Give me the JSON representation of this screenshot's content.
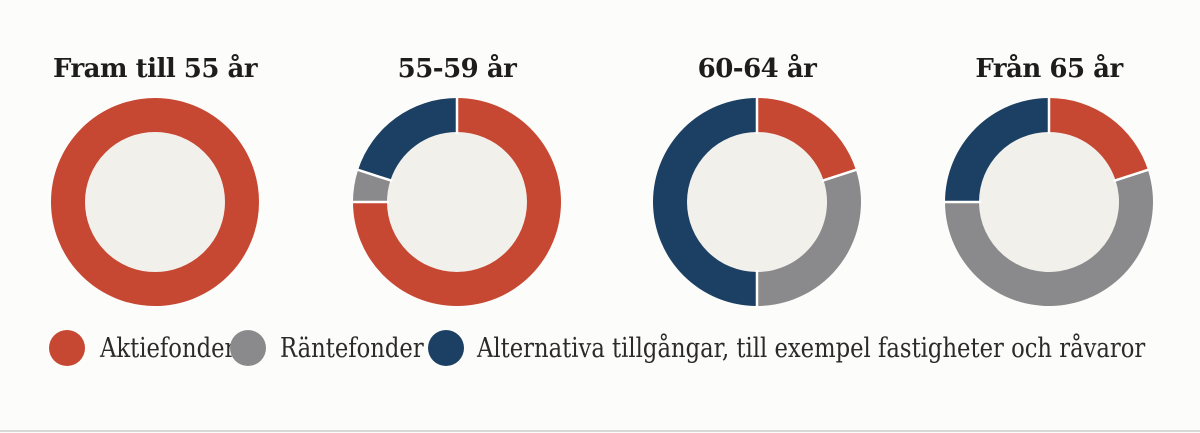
{
  "page": {
    "background": "#fcfcfa",
    "bottom_rule_color": "#d8d8d6",
    "title_text_color": "#1e1d1b",
    "legend_text_color": "#2b2a27"
  },
  "chart_data": {
    "type": "pie",
    "variant": "donut",
    "start_angle": "12-oclock",
    "direction": "clockwise",
    "unit": "percent",
    "categories": [
      "Aktiefonder",
      "Räntefonder",
      "Alternativa tillgångar"
    ],
    "colors": [
      "#c64732",
      "#8a8a8c",
      "#1c4063"
    ],
    "hole_color": "#f1f0eb",
    "separator_color": "#ffffff",
    "charts": [
      {
        "title": "Fram till 55 år",
        "values": [
          100,
          0,
          0
        ]
      },
      {
        "title": "55-59 år",
        "values": [
          75,
          5,
          20
        ]
      },
      {
        "title": "60-64 år",
        "values": [
          20,
          30,
          50
        ]
      },
      {
        "title": "Från 65 år",
        "values": [
          20,
          55,
          25
        ]
      }
    ]
  },
  "legend": {
    "items": [
      {
        "label": "Aktiefonder",
        "color": "#c64732"
      },
      {
        "label": "Räntefonder",
        "color": "#8a8a8c"
      },
      {
        "label": "Alternativa tillgångar, till exempel fastigheter och råvaror",
        "color": "#1c4063"
      }
    ]
  }
}
